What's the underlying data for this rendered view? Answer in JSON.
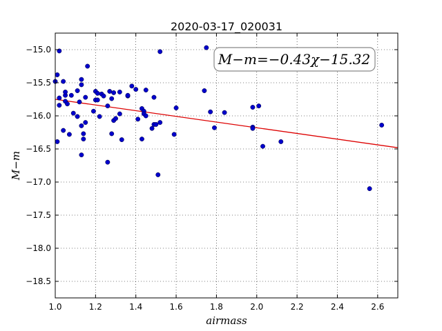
{
  "chart_data": {
    "type": "scatter",
    "title": "2020-03-17_020031",
    "xlabel": "airmass",
    "ylabel": "M−m",
    "xlim": [
      1.0,
      2.7
    ],
    "ylim": [
      -18.75,
      -14.75
    ],
    "y_inverted": true,
    "grid": true,
    "x_ticks": [
      1.0,
      1.2,
      1.4,
      1.6,
      1.8,
      2.0,
      2.2,
      2.4,
      2.6
    ],
    "x_tick_labels": [
      "1.0",
      "1.2",
      "1.4",
      "1.6",
      "1.8",
      "2.0",
      "2.2",
      "2.4",
      "2.6"
    ],
    "y_ticks": [
      -15.0,
      -15.5,
      -16.0,
      -16.5,
      -17.0,
      -17.5,
      -18.0,
      -18.5
    ],
    "y_tick_labels": [
      "−15.0",
      "−15.5",
      "−16.0",
      "−16.5",
      "−17.0",
      "−17.5",
      "−18.0",
      "−18.5"
    ],
    "annotation": "M−m=−0.43χ−15.32",
    "fit": {
      "slope": -0.43,
      "intercept": -15.32,
      "color": "#dd0000"
    },
    "point_color": "#0000cc",
    "points": [
      [
        1.0,
        -15.48
      ],
      [
        1.01,
        -15.38
      ],
      [
        1.01,
        -16.39
      ],
      [
        1.02,
        -15.02
      ],
      [
        1.02,
        -15.73
      ],
      [
        1.02,
        -15.84
      ],
      [
        1.04,
        -16.22
      ],
      [
        1.04,
        -15.48
      ],
      [
        1.05,
        -15.69
      ],
      [
        1.05,
        -15.64
      ],
      [
        1.05,
        -15.78
      ],
      [
        1.06,
        -15.82
      ],
      [
        1.07,
        -16.28
      ],
      [
        1.08,
        -15.69
      ],
      [
        1.09,
        -15.96
      ],
      [
        1.11,
        -15.62
      ],
      [
        1.11,
        -16.01
      ],
      [
        1.12,
        -15.79
      ],
      [
        1.13,
        -15.45
      ],
      [
        1.13,
        -15.53
      ],
      [
        1.13,
        -16.59
      ],
      [
        1.13,
        -16.15
      ],
      [
        1.14,
        -16.35
      ],
      [
        1.14,
        -16.27
      ],
      [
        1.15,
        -16.1
      ],
      [
        1.15,
        -15.72
      ],
      [
        1.16,
        -15.25
      ],
      [
        1.19,
        -15.93
      ],
      [
        1.2,
        -15.76
      ],
      [
        1.2,
        -15.63
      ],
      [
        1.21,
        -15.66
      ],
      [
        1.21,
        -15.76
      ],
      [
        1.22,
        -16.01
      ],
      [
        1.23,
        -15.67
      ],
      [
        1.24,
        -15.7
      ],
      [
        1.26,
        -16.7
      ],
      [
        1.26,
        -15.85
      ],
      [
        1.27,
        -15.63
      ],
      [
        1.28,
        -15.74
      ],
      [
        1.28,
        -16.27
      ],
      [
        1.29,
        -15.65
      ],
      [
        1.29,
        -16.07
      ],
      [
        1.3,
        -16.04
      ],
      [
        1.32,
        -15.97
      ],
      [
        1.32,
        -15.64
      ],
      [
        1.33,
        -16.36
      ],
      [
        1.36,
        -15.7
      ],
      [
        1.36,
        -15.69
      ],
      [
        1.38,
        -15.55
      ],
      [
        1.4,
        -15.6
      ],
      [
        1.41,
        -16.05
      ],
      [
        1.43,
        -15.89
      ],
      [
        1.43,
        -16.35
      ],
      [
        1.44,
        -15.93
      ],
      [
        1.44,
        -15.97
      ],
      [
        1.45,
        -16.0
      ],
      [
        1.45,
        -15.61
      ],
      [
        1.48,
        -16.19
      ],
      [
        1.49,
        -16.13
      ],
      [
        1.49,
        -15.72
      ],
      [
        1.5,
        -16.13
      ],
      [
        1.51,
        -16.89
      ],
      [
        1.52,
        -16.1
      ],
      [
        1.52,
        -15.03
      ],
      [
        1.59,
        -16.28
      ],
      [
        1.6,
        -15.88
      ],
      [
        1.74,
        -15.62
      ],
      [
        1.75,
        -14.97
      ],
      [
        1.77,
        -15.94
      ],
      [
        1.79,
        -16.18
      ],
      [
        1.84,
        -15.95
      ],
      [
        1.98,
        -15.87
      ],
      [
        1.98,
        -16.17
      ],
      [
        1.98,
        -16.19
      ],
      [
        2.01,
        -15.85
      ],
      [
        2.03,
        -16.46
      ],
      [
        2.12,
        -16.39
      ],
      [
        2.56,
        -17.1
      ],
      [
        2.62,
        -16.14
      ]
    ]
  }
}
